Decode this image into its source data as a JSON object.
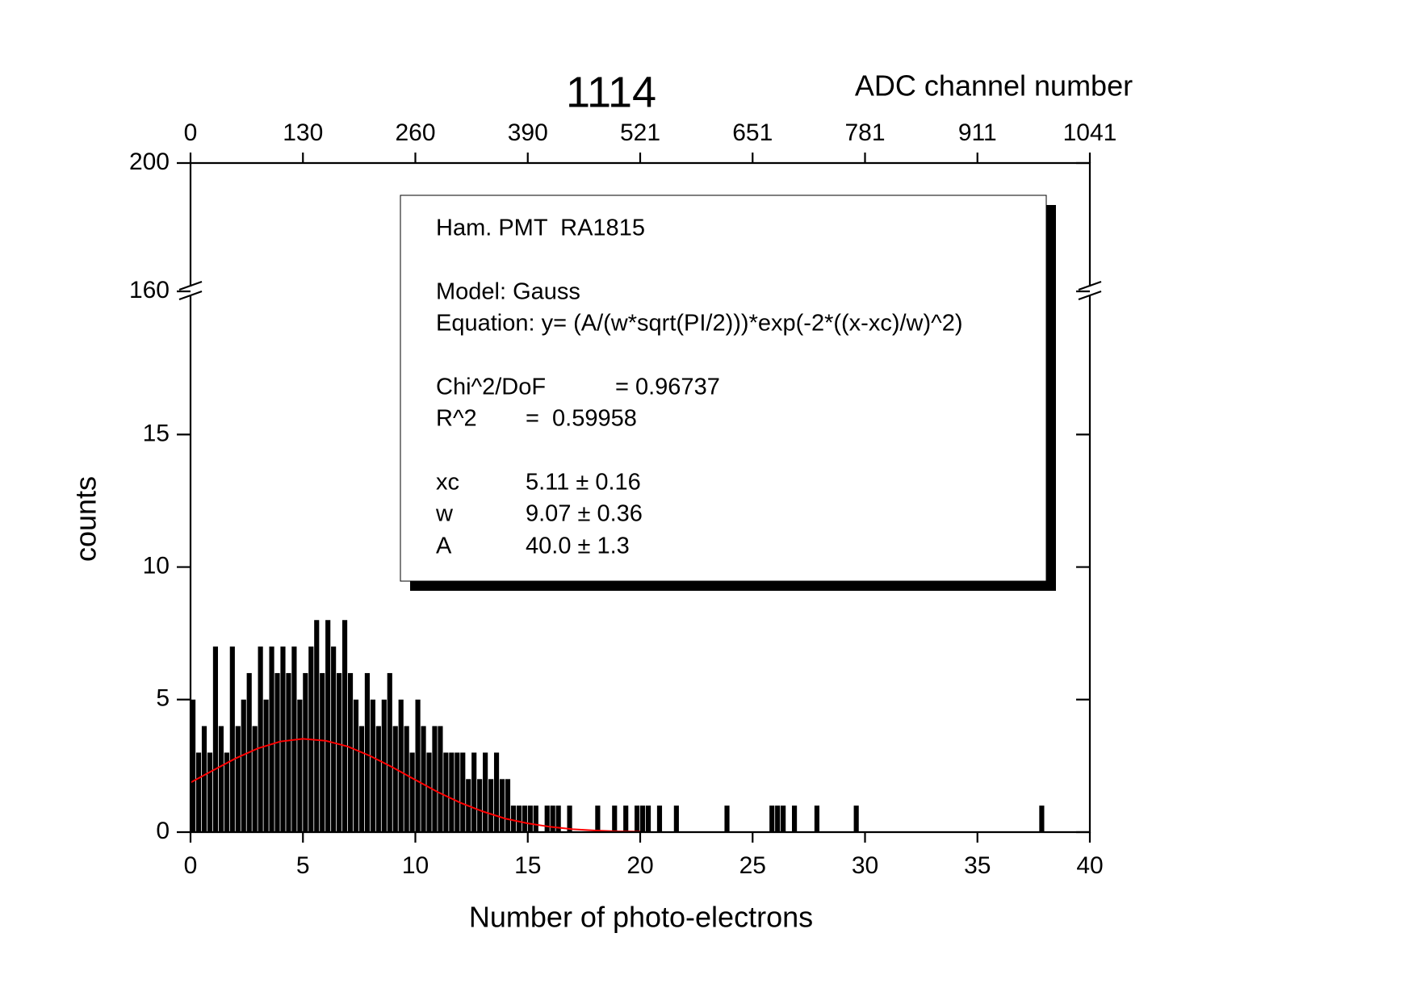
{
  "chart_data": {
    "type": "histogram",
    "title": "1114",
    "title_color": "#ff0000",
    "xlabel": "Number of photo-electrons",
    "ylabel": "counts",
    "x2label": "ADC channel number",
    "xlim": [
      0,
      40
    ],
    "xticks": [
      0,
      5,
      10,
      15,
      20,
      25,
      30,
      35,
      40
    ],
    "x2lim": [
      0,
      1041
    ],
    "x2ticks": [
      0,
      {
        "value": 130.125,
        "label": "130"
      },
      {
        "value": 260.25,
        "label": "260"
      },
      {
        "value": 390.375,
        "label": "390"
      },
      {
        "value": 520.5,
        "label": "521"
      },
      {
        "value": 650.625,
        "label": "651"
      },
      {
        "value": 780.75,
        "label": "781"
      },
      {
        "value": 910.875,
        "label": "911"
      },
      1041
    ],
    "ylim": [
      0,
      200
    ],
    "ybreak": [
      20.4,
      160
    ],
    "yticks": [
      0,
      5,
      10,
      15,
      160,
      200
    ],
    "color": "#000000",
    "bins": [
      0,
      0.25,
      0.5,
      0.75,
      1,
      1.25,
      1.5,
      1.75,
      2,
      2.25,
      2.5,
      2.75,
      3,
      3.25,
      3.5,
      3.75,
      4,
      4.25,
      4.5,
      4.75,
      5,
      5.25,
      5.5,
      5.75,
      6,
      6.25,
      6.5,
      6.75,
      7,
      7.25,
      7.5,
      7.75,
      8,
      8.25,
      8.5,
      8.75,
      9,
      9.25,
      9.5,
      9.75,
      10,
      10.25,
      10.5,
      10.75,
      11,
      11.25,
      11.5,
      11.75,
      12,
      12.25,
      12.5,
      12.75,
      13,
      13.25,
      13.5,
      13.75,
      14,
      14.25,
      14.5,
      14.75,
      15,
      15.25,
      15.5,
      15.75,
      16,
      16.25,
      16.5,
      16.75,
      17,
      17.25,
      17.5,
      17.75,
      18,
      18.25,
      18.5,
      18.75,
      19,
      19.25,
      19.5,
      19.75,
      20,
      20.25,
      20.5,
      20.75,
      21,
      21.25,
      21.5,
      21.75,
      22,
      22.25,
      22.5,
      22.75,
      23,
      23.25,
      23.5,
      23.75,
      24,
      24.25,
      24.5,
      24.75,
      25,
      25.25,
      25.5,
      25.75,
      26,
      26.25,
      26.5,
      26.75,
      27,
      27.25,
      27.5,
      27.75,
      28,
      28.25,
      28.5,
      28.75,
      29,
      29.25,
      29.5,
      29.75,
      30,
      30.25,
      30.5,
      30.75,
      31,
      31.25,
      31.5,
      31.75,
      32,
      32.25,
      32.5,
      32.75,
      33,
      33.25,
      33.5,
      33.75,
      34,
      34.25,
      34.5,
      34.75,
      35,
      35.25,
      35.5,
      35.75,
      36,
      36.25,
      36.5,
      36.75,
      37,
      37.25,
      37.5,
      37.75,
      38,
      38.25,
      38.5,
      38.75,
      39,
      39.25,
      39.5,
      39.75,
      40
    ],
    "values": [
      5,
      3,
      4,
      3,
      7,
      4,
      3,
      7,
      4,
      5,
      6,
      4,
      7,
      5,
      7,
      6,
      7,
      6,
      7,
      5,
      6,
      7,
      8,
      6,
      8,
      7,
      6,
      8,
      6,
      5,
      4,
      6,
      5,
      4,
      5,
      6,
      4,
      5,
      4,
      3,
      5,
      4,
      3,
      4,
      4,
      3,
      3,
      3,
      3,
      2,
      3,
      2,
      3,
      2,
      3,
      2,
      2,
      1,
      1,
      1,
      1,
      1,
      0,
      1,
      1,
      1,
      0,
      1,
      0,
      0,
      0,
      0,
      1,
      0,
      0,
      1,
      0,
      1,
      0,
      1,
      1,
      1,
      0,
      1,
      0,
      0,
      1,
      0,
      0,
      0,
      0,
      0,
      0,
      0,
      0,
      1,
      0,
      0,
      0,
      0,
      0,
      0,
      0,
      1,
      1,
      1,
      0,
      1,
      0,
      0,
      0,
      1,
      0,
      0,
      0,
      0,
      0,
      0,
      1,
      0,
      0,
      0,
      0,
      0,
      0,
      0,
      0,
      0,
      0,
      0,
      0,
      0,
      0,
      0,
      0,
      0,
      0,
      0,
      0,
      0,
      0,
      0,
      0,
      0,
      0,
      0,
      0,
      0,
      0,
      0,
      0,
      1,
      0,
      0,
      0,
      0,
      0,
      0,
      0,
      0
    ],
    "fit": {
      "color": "#ff0000",
      "x": [
        0,
        1,
        2,
        3,
        4,
        5,
        6,
        7,
        8,
        9,
        10,
        11,
        12,
        13,
        14,
        15,
        16,
        17,
        18,
        19,
        20
      ],
      "values": [
        1.87,
        2.33,
        2.78,
        3.16,
        3.42,
        3.52,
        3.45,
        3.23,
        2.87,
        2.44,
        1.97,
        1.51,
        1.11,
        0.78,
        0.51,
        0.33,
        0.2,
        0.11,
        0.06,
        0.03,
        0.02
      ]
    },
    "annotations": [
      "Ham. PMT  RA1815",
      "Model: Gauss",
      "Equation: y= (A/(w*sqrt(PI/2)))*exp(-2*((x-xc)/w)^2)",
      "Chi^2/DoF",
      "= 0.96737",
      "R^2",
      "=  0.59958",
      "xc",
      "5.11 ± 0.16",
      "w",
      "9.07 ± 0.36",
      "A",
      "40.0 ± 1.3"
    ]
  }
}
